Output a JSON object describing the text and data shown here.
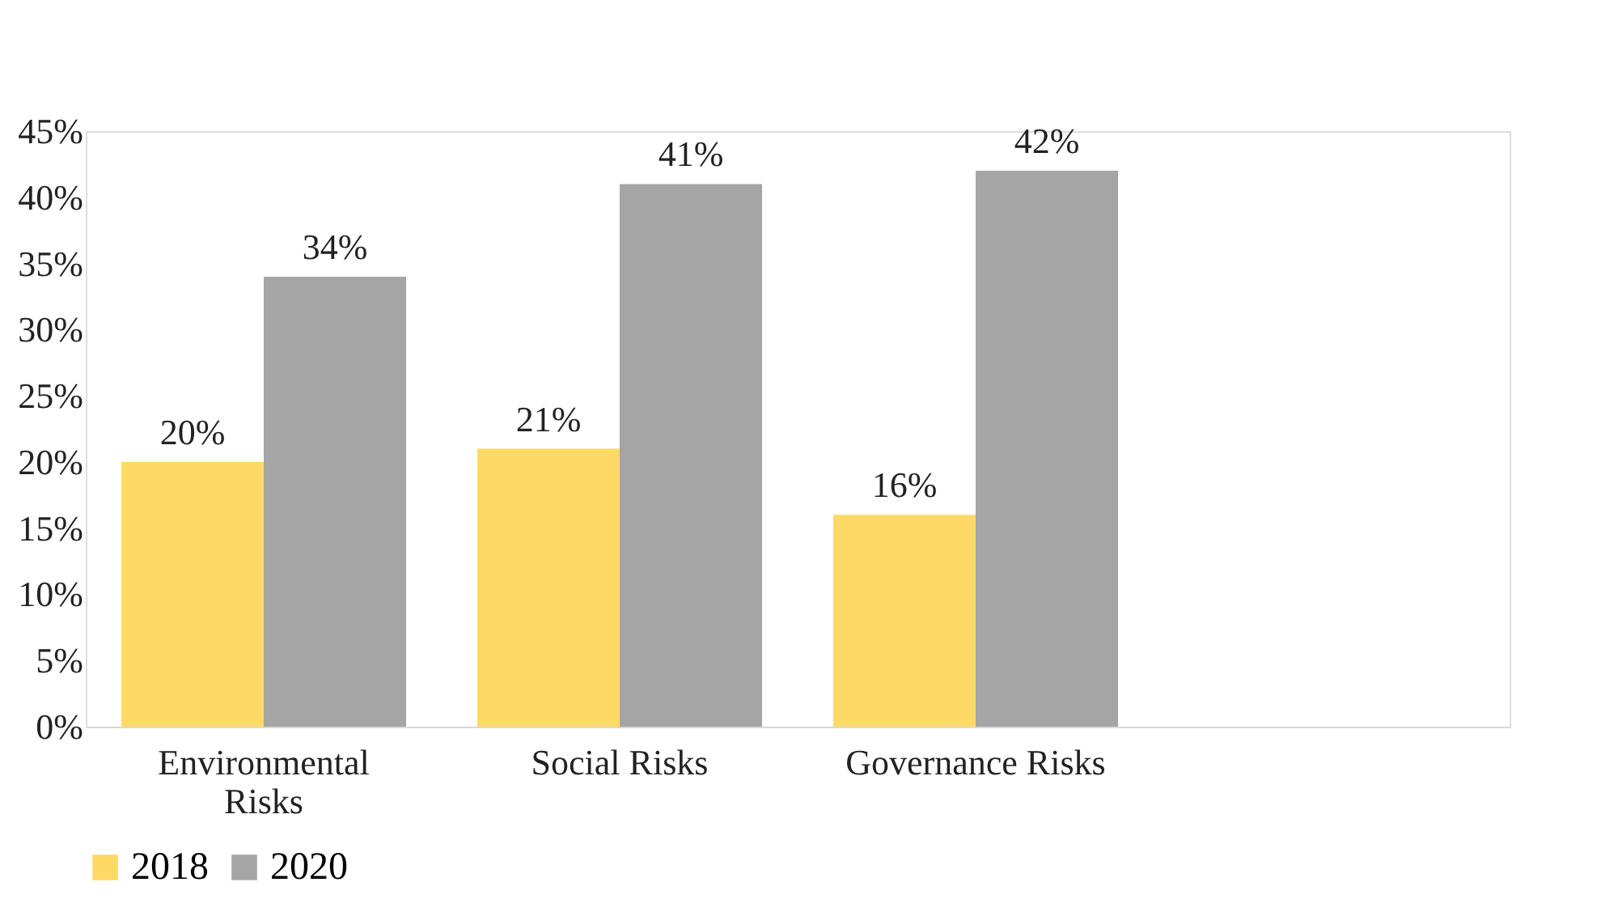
{
  "chart_data": {
    "type": "bar",
    "categories": [
      "Environmental Risks",
      "Social Risks",
      "Governance Risks",
      null
    ],
    "series": [
      {
        "name": "2018",
        "color": "#ffd966",
        "values": [
          20,
          21,
          16,
          null
        ],
        "value_labels": [
          "20%",
          "21%",
          "16%",
          null
        ]
      },
      {
        "name": "2020",
        "color": "#a5a5a5",
        "values": [
          34,
          41,
          42,
          null
        ],
        "value_labels": [
          "34%",
          "41%",
          "42%",
          null
        ]
      }
    ],
    "ylim": [
      0,
      45
    ],
    "yticks": [
      {
        "value": 0,
        "label": "0%"
      },
      {
        "value": 5,
        "label": "5%"
      },
      {
        "value": 10,
        "label": "10%"
      },
      {
        "value": 15,
        "label": "15%"
      },
      {
        "value": 20,
        "label": "20%"
      },
      {
        "value": 25,
        "label": "25%"
      },
      {
        "value": 30,
        "label": "30%"
      },
      {
        "value": 35,
        "label": "35%"
      },
      {
        "value": 40,
        "label": "40%"
      },
      {
        "value": 45,
        "label": "45%"
      }
    ],
    "grid": false,
    "legend": "bottom"
  }
}
